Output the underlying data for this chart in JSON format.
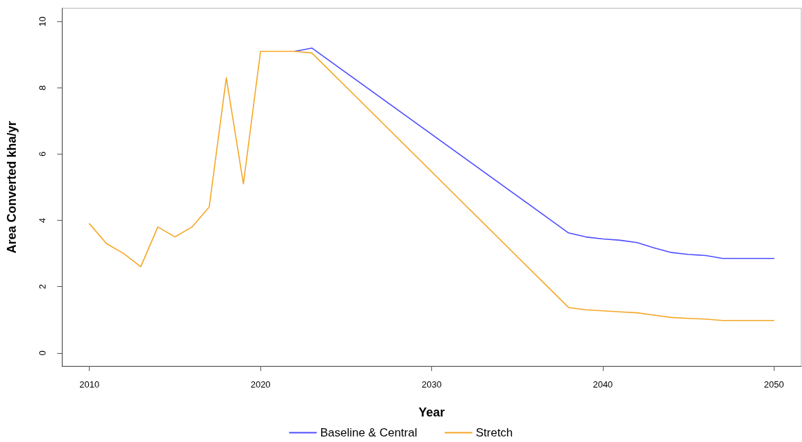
{
  "chart_data": {
    "type": "line",
    "xlabel": "Year",
    "ylabel": "Area Converted kha/yr",
    "xlim": [
      2008.4,
      2051.6
    ],
    "xticks": [
      2010,
      2020,
      2030,
      2040,
      2050
    ],
    "ylim": [
      -0.4,
      10.4
    ],
    "yticks": [
      0,
      2,
      4,
      6,
      8,
      10
    ],
    "grid": false,
    "legend": "bottom",
    "marker": "none",
    "line_style": "solid",
    "series": [
      {
        "name": "Baseline & Central",
        "color": "#4d4dff",
        "x": [
          2022,
          2023,
          2038,
          2039,
          2040,
          2041,
          2042,
          2043,
          2044,
          2045,
          2046,
          2047,
          2048,
          2049,
          2050
        ],
        "values": [
          9.1,
          9.2,
          3.62,
          3.5,
          3.44,
          3.4,
          3.33,
          3.17,
          3.03,
          2.97,
          2.94,
          2.85,
          2.85,
          2.85,
          2.85
        ]
      },
      {
        "name": "Stretch",
        "color": "#f5a623",
        "x": [
          2010,
          2011,
          2012,
          2013,
          2014,
          2015,
          2016,
          2017,
          2018,
          2019,
          2020,
          2021,
          2022,
          2023,
          2038,
          2039,
          2040,
          2041,
          2042,
          2043,
          2044,
          2045,
          2046,
          2047,
          2048,
          2049,
          2050
        ],
        "values": [
          3.9,
          3.3,
          3.0,
          2.6,
          3.8,
          3.5,
          3.8,
          4.4,
          8.3,
          5.1,
          9.1,
          9.1,
          9.1,
          9.05,
          1.37,
          1.3,
          1.27,
          1.24,
          1.21,
          1.14,
          1.07,
          1.04,
          1.02,
          0.98,
          0.98,
          0.98,
          0.98
        ]
      }
    ]
  }
}
